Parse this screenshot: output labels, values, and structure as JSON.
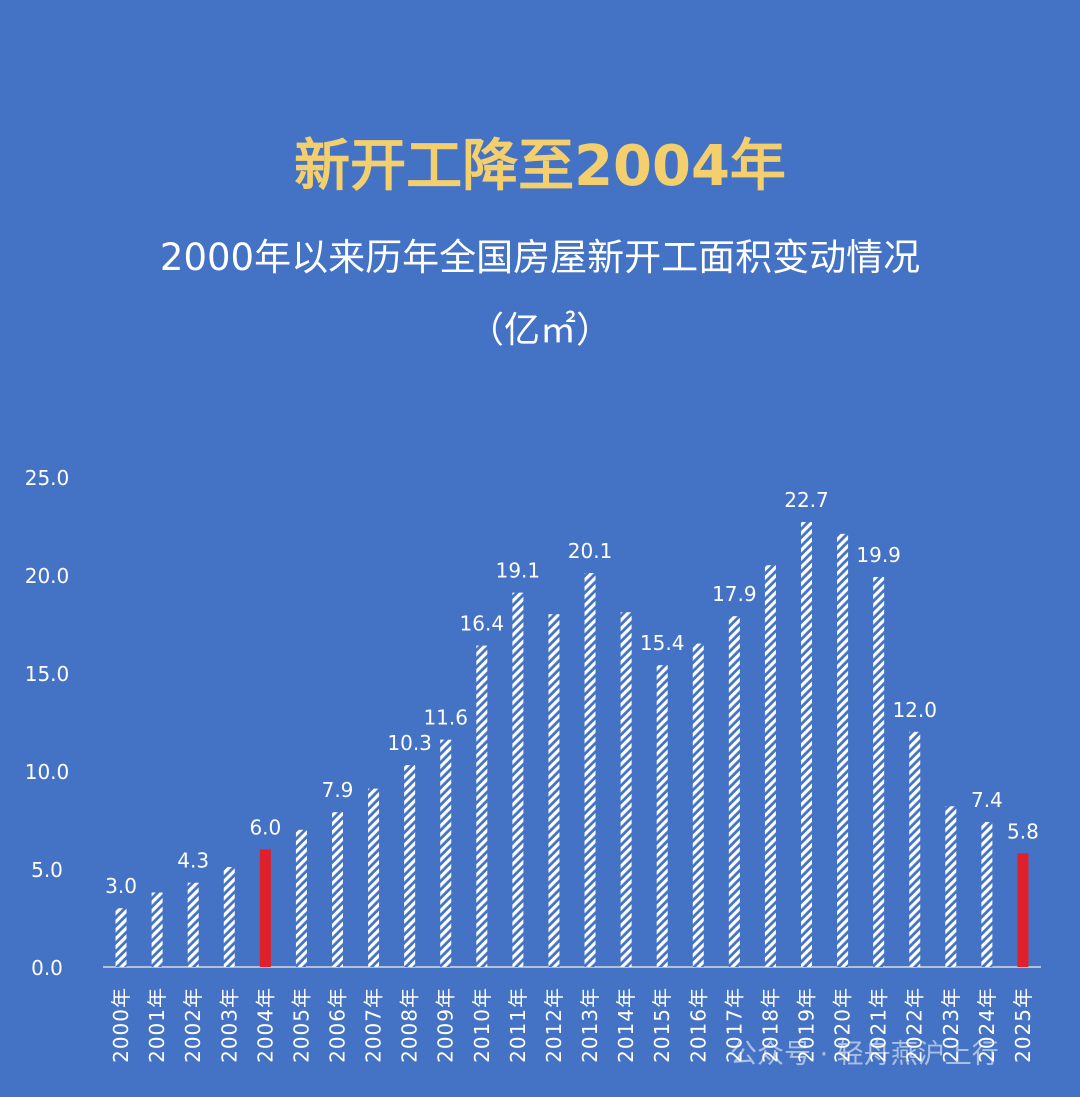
{
  "colors": {
    "background": "#4472C4",
    "title": "#F3CF6E",
    "text": "#FFFFFF",
    "highlight_bar": "#E0202A",
    "hatched_bar": "#FFFFFF"
  },
  "watermark": "公众号 · 轻舟燕沪上行",
  "chart_data": {
    "type": "bar",
    "title": "新开工降至2004年",
    "subtitle": "2000年以来历年全国房屋新开工面积变动情况",
    "unit": "（亿㎡）",
    "ylim": [
      0,
      25
    ],
    "yticks": [
      "0.0",
      "5.0",
      "10.0",
      "15.0",
      "20.0",
      "25.0"
    ],
    "grid": false,
    "categories": [
      "2000年",
      "2001年",
      "2002年",
      "2003年",
      "2004年",
      "2005年",
      "2006年",
      "2007年",
      "2008年",
      "2009年",
      "2010年",
      "2011年",
      "2012年",
      "2013年",
      "2014年",
      "2015年",
      "2016年",
      "2017年",
      "2018年",
      "2019年",
      "2020年",
      "2021年",
      "2022年",
      "2023年",
      "2024年",
      "2025年"
    ],
    "values": [
      3.0,
      3.8,
      4.3,
      5.1,
      6.0,
      7.0,
      7.9,
      9.1,
      10.3,
      11.6,
      16.4,
      19.1,
      18.0,
      20.1,
      18.1,
      15.4,
      16.5,
      17.9,
      20.5,
      22.7,
      22.1,
      19.9,
      12.0,
      8.2,
      7.4,
      5.8
    ],
    "data_labels": [
      "3.0",
      "",
      "4.3",
      "",
      "6.0",
      "",
      "7.9",
      "",
      "10.3",
      "11.6",
      "16.4",
      "19.1",
      "",
      "20.1",
      "",
      "15.4",
      "",
      "17.9",
      "",
      "22.7",
      "",
      "19.9",
      "12.0",
      "",
      "7.4",
      "5.8"
    ],
    "highlighted": [
      4,
      25
    ]
  }
}
